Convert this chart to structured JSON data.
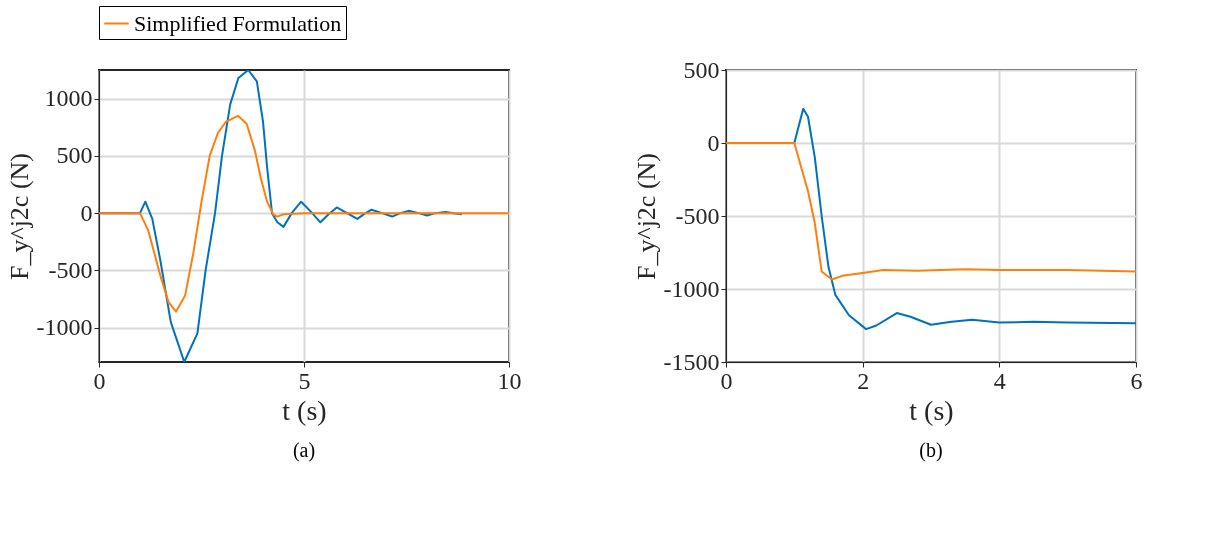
{
  "chart_data": [
    {
      "type": "line",
      "xlabel": "t (s)",
      "ylabel": "F_y^j2c (N)",
      "annotations": [
        "(a)"
      ],
      "xlim": [
        0,
        10
      ],
      "ylim": [
        -1300,
        1250
      ],
      "xticks": [
        0,
        5,
        10
      ],
      "yticks": [
        -1000,
        -500,
        0,
        500,
        1000
      ],
      "grid": true,
      "legend": "top",
      "line_style": "solid",
      "series": [
        {
          "color": "#0072bd",
          "x": [
            0,
            1.0,
            1.13,
            1.3,
            1.5,
            1.75,
            2.08,
            2.4,
            2.6,
            2.83,
            3.0,
            3.2,
            3.4,
            3.64,
            3.85,
            4.0,
            4.1,
            4.22,
            4.35,
            4.5,
            4.7,
            4.93,
            5.15,
            5.4,
            5.6,
            5.8,
            6.05,
            6.3,
            6.5,
            6.65,
            6.9,
            7.15,
            7.35,
            7.55,
            7.8,
            8.0,
            8.2,
            8.45,
            8.65,
            8.85
          ],
          "values": [
            0,
            0,
            100,
            -50,
            -420,
            -950,
            -1300,
            -1050,
            -500,
            0,
            500,
            950,
            1180,
            1250,
            1150,
            800,
            400,
            0,
            -80,
            -120,
            0,
            100,
            20,
            -80,
            -10,
            50,
            0,
            -50,
            0,
            30,
            0,
            -30,
            0,
            20,
            0,
            -20,
            0,
            10,
            0,
            -10
          ]
        },
        {
          "name": "Simplified Formulation",
          "color": "#ff7f0e",
          "x": [
            0,
            1.0,
            1.2,
            1.5,
            1.7,
            1.88,
            2.1,
            2.3,
            2.5,
            2.7,
            2.9,
            3.1,
            3.39,
            3.6,
            3.8,
            3.95,
            4.1,
            4.25,
            4.35,
            4.5,
            5,
            5.5,
            10
          ],
          "values": [
            0,
            0,
            -150,
            -550,
            -780,
            -860,
            -720,
            -350,
            100,
            500,
            700,
            800,
            850,
            780,
            550,
            300,
            100,
            -10,
            -30,
            -10,
            0,
            0,
            0
          ]
        }
      ]
    },
    {
      "type": "line",
      "xlabel": "t (s)",
      "ylabel": "F_y^j2c (N)",
      "annotations": [
        "(b)"
      ],
      "xlim": [
        0,
        6
      ],
      "ylim": [
        -1500,
        500
      ],
      "xticks": [
        0,
        2,
        4,
        6
      ],
      "yticks": [
        -1500,
        -1000,
        -500,
        0,
        500
      ],
      "grid": true,
      "line_style": "solid",
      "series": [
        {
          "color": "#0072bd",
          "x": [
            0,
            1.0,
            1.13,
            1.2,
            1.3,
            1.4,
            1.5,
            1.6,
            1.8,
            2.05,
            2.2,
            2.5,
            2.7,
            3.0,
            3.3,
            3.6,
            4.0,
            4.5,
            5,
            6
          ],
          "values": [
            0,
            0,
            235,
            180,
            -100,
            -500,
            -850,
            -1040,
            -1180,
            -1275,
            -1250,
            -1165,
            -1190,
            -1245,
            -1225,
            -1210,
            -1230,
            -1225,
            -1230,
            -1235
          ]
        },
        {
          "color": "#ff7f0e",
          "x": [
            0,
            1.0,
            1.2,
            1.3,
            1.4,
            1.55,
            1.7,
            2.0,
            2.3,
            2.8,
            3.5,
            4,
            5,
            6
          ],
          "values": [
            0,
            0,
            -330,
            -550,
            -880,
            -935,
            -910,
            -890,
            -870,
            -875,
            -865,
            -870,
            -870,
            -880
          ]
        }
      ]
    }
  ]
}
